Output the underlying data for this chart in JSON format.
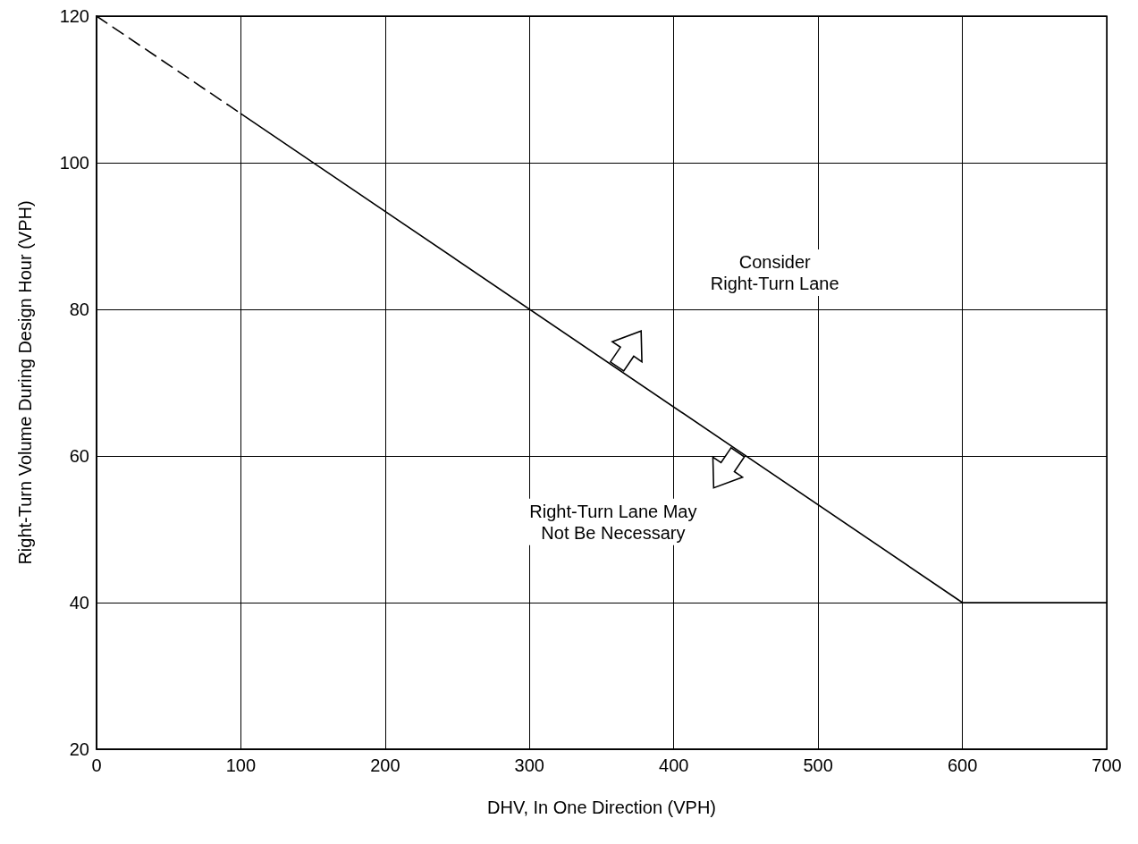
{
  "chart_data": {
    "type": "line",
    "xlabel": "DHV, In One Direction (VPH)",
    "ylabel": "Right-Turn Volume During Design Hour (VPH)",
    "series": [
      {
        "color": "#000000",
        "line_style": "dashed",
        "x": [
          0,
          100
        ],
        "values": [
          120,
          106.7
        ]
      },
      {
        "color": "#000000",
        "line_style": "solid",
        "x": [
          100,
          600,
          700
        ],
        "values": [
          106.7,
          40,
          40
        ]
      }
    ],
    "xlim": [
      0,
      700
    ],
    "xticks": [
      0,
      100,
      200,
      300,
      400,
      500,
      600,
      700
    ],
    "ylim": [
      20,
      120
    ],
    "yticks": [
      20,
      40,
      60,
      80,
      100,
      120
    ],
    "grid": true,
    "marker": "none",
    "annotations": [
      "Consider\nRight-Turn Lane",
      "Right-Turn Lane May\nNot Be Necessary"
    ]
  }
}
